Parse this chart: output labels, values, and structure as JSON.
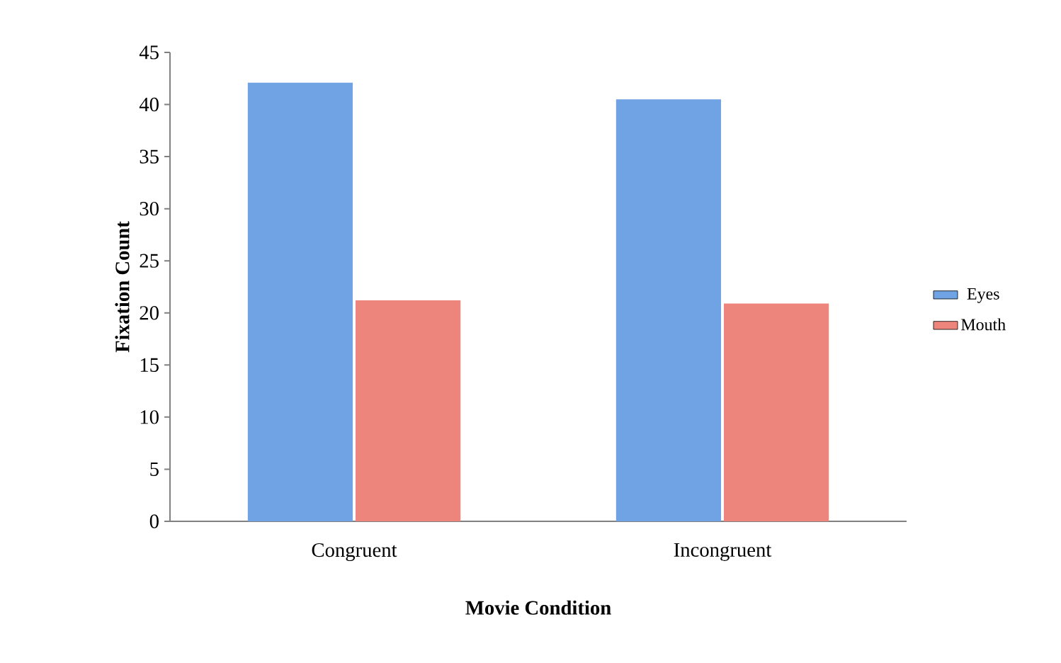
{
  "chart_data": {
    "type": "bar",
    "xlabel": "Movie Condition",
    "ylabel": "Fixation Count",
    "categories": [
      "Congruent",
      "Incongruent"
    ],
    "series": [
      {
        "name": "Eyes",
        "color": "#6fa3e4",
        "values": [
          42.1,
          40.5
        ]
      },
      {
        "name": "Mouth",
        "color": "#ee857c",
        "values": [
          21.2,
          20.9
        ]
      }
    ],
    "ylim": [
      0,
      45
    ],
    "yticks": [
      0,
      5,
      10,
      15,
      20,
      25,
      30,
      35,
      40,
      45
    ],
    "grid": false,
    "legend": "right"
  }
}
